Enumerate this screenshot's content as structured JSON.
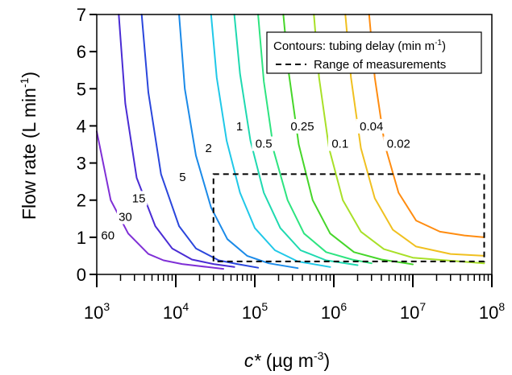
{
  "chart_data": {
    "type": "line",
    "x_scale": "log",
    "xlim": [
      1000,
      100000000
    ],
    "ylim": [
      0,
      7
    ],
    "xlabel_italic": "c*",
    "xlabel_rest": " (µg m",
    "xlabel_sup": "-3",
    "xlabel_end": ")",
    "ylabel_main": "Flow rate (L min",
    "ylabel_sup": "-1",
    "ylabel_end": ")",
    "x_ticks": [
      {
        "base": "10",
        "exp": "3"
      },
      {
        "base": "10",
        "exp": "4"
      },
      {
        "base": "10",
        "exp": "5"
      },
      {
        "base": "10",
        "exp": "6"
      },
      {
        "base": "10",
        "exp": "7"
      },
      {
        "base": "10",
        "exp": "8"
      }
    ],
    "y_ticks": [
      "0",
      "1",
      "2",
      "3",
      "4",
      "5",
      "6",
      "7"
    ],
    "legend": {
      "position": "top-right",
      "title_main": "Contours: tubing delay (min m",
      "title_sup": "-1",
      "title_end": ")",
      "dashed_label": "Range of measurements"
    },
    "measurement_range": {
      "x": [
        30000,
        80000000
      ],
      "y": [
        0.35,
        2.7
      ]
    },
    "series": [
      {
        "label": "60",
        "color": "#7f2fd6",
        "points": [
          [
            1000,
            3.85
          ],
          [
            1500,
            2.0
          ],
          [
            2500,
            1.1
          ],
          [
            4500,
            0.55
          ],
          [
            7000,
            0.38
          ],
          [
            12000,
            0.28
          ],
          [
            25000,
            0.2
          ],
          [
            40000,
            0.15
          ]
        ],
        "label_at": [
          1380.0,
          1.05
        ]
      },
      {
        "label": "30",
        "color": "#4a2cd4",
        "points": [
          [
            1900,
            7.0
          ],
          [
            2300,
            4.6
          ],
          [
            3200,
            2.6
          ],
          [
            5500,
            1.3
          ],
          [
            9000,
            0.7
          ],
          [
            16000,
            0.4
          ],
          [
            30000,
            0.28
          ],
          [
            55000,
            0.2
          ]
        ],
        "label_at": [
          2300.0,
          1.55
        ]
      },
      {
        "label": "15",
        "color": "#2a46dc",
        "points": [
          [
            3700,
            7.0
          ],
          [
            4500,
            4.9
          ],
          [
            6500,
            2.7
          ],
          [
            11000,
            1.3
          ],
          [
            18000,
            0.7
          ],
          [
            35000,
            0.38
          ],
          [
            60000,
            0.28
          ],
          [
            110000,
            0.18
          ]
        ],
        "label_at": [
          3400.0,
          2.05
        ]
      },
      {
        "label": "5",
        "color": "#1b8ae8",
        "points": [
          [
            11000,
            7.0
          ],
          [
            13000,
            5.0
          ],
          [
            18000,
            3.2
          ],
          [
            28000,
            1.8
          ],
          [
            45000,
            0.95
          ],
          [
            80000,
            0.5
          ],
          [
            150000,
            0.3
          ],
          [
            350000,
            0.17
          ]
        ],
        "label_at": [
          12200.0,
          2.62
        ]
      },
      {
        "label": "2",
        "color": "#20c8e8",
        "points": [
          [
            28000,
            7.0
          ],
          [
            33000,
            5.3
          ],
          [
            44000,
            3.6
          ],
          [
            65000,
            2.2
          ],
          [
            100000,
            1.25
          ],
          [
            180000,
            0.65
          ],
          [
            350000,
            0.35
          ],
          [
            900000,
            0.2
          ]
        ],
        "label_at": [
          26000.0,
          3.4
        ]
      },
      {
        "label": "1",
        "color": "#1fd9b0",
        "points": [
          [
            55000,
            7.0
          ],
          [
            65000,
            5.4
          ],
          [
            88000,
            3.6
          ],
          [
            130000,
            2.2
          ],
          [
            210000,
            1.25
          ],
          [
            380000,
            0.65
          ],
          [
            800000,
            0.38
          ],
          [
            2000000,
            0.25
          ]
        ],
        "label_at": [
          64000.0,
          3.99
        ]
      },
      {
        "label": "0.5",
        "color": "#2ee480",
        "points": [
          [
            110000,
            7.0
          ],
          [
            130000,
            5.2
          ],
          [
            175000,
            3.3
          ],
          [
            260000,
            2.0
          ],
          [
            420000,
            1.1
          ],
          [
            800000,
            0.6
          ],
          [
            1700000,
            0.4
          ],
          [
            3000000,
            0.3
          ]
        ],
        "label_at": [
          130000.0,
          3.52
        ]
      },
      {
        "label": "0.25",
        "color": "#46d62a",
        "points": [
          [
            230000,
            7.0
          ],
          [
            270000,
            5.4
          ],
          [
            360000,
            3.5
          ],
          [
            540000,
            2.0
          ],
          [
            900000,
            1.1
          ],
          [
            1800000,
            0.6
          ],
          [
            4000000,
            0.4
          ],
          [
            10000000,
            0.27
          ]
        ],
        "label_at": [
          400000.0,
          3.99
        ]
      },
      {
        "label": "0.1",
        "color": "#a8e028",
        "points": [
          [
            560000,
            7.0
          ],
          [
            650000,
            5.3
          ],
          [
            870000,
            3.4
          ],
          [
            1300000,
            2.0
          ],
          [
            2200000,
            1.15
          ],
          [
            4300000,
            0.68
          ],
          [
            10000000,
            0.45
          ],
          [
            80000000,
            0.3
          ]
        ],
        "label_at": [
          1200000.0,
          3.52
        ]
      },
      {
        "label": "0.04",
        "color": "#f0c020",
        "points": [
          [
            1400000,
            7.0
          ],
          [
            1650000,
            5.3
          ],
          [
            2200000,
            3.4
          ],
          [
            3300000,
            2.05
          ],
          [
            5600000,
            1.2
          ],
          [
            11000000,
            0.75
          ],
          [
            30000000,
            0.55
          ],
          [
            80000000,
            0.5
          ]
        ],
        "label_at": [
          3000000.0,
          3.99
        ]
      },
      {
        "label": "0.02",
        "color": "#ff8c10",
        "points": [
          [
            2800000,
            7.0
          ],
          [
            3300000,
            5.3
          ],
          [
            4400000,
            3.5
          ],
          [
            6600000,
            2.2
          ],
          [
            11000000,
            1.45
          ],
          [
            22000000,
            1.15
          ],
          [
            45000000,
            1.05
          ],
          [
            80000000,
            1.0
          ]
        ],
        "label_at": [
          6600000.0,
          3.52
        ]
      }
    ]
  }
}
